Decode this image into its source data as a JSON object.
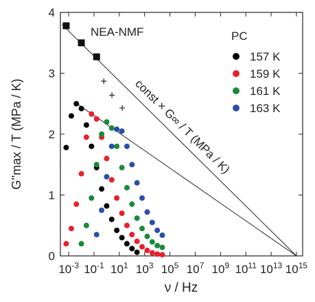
{
  "chart_data": {
    "type": "scatter",
    "xscale": "log",
    "xlabel": "ν / Hz",
    "ylabel": "G''max / T (MPa / K)",
    "xlim": [
      0.00022,
      3100000000000000.0
    ],
    "ylim": [
      0,
      4
    ],
    "xticks": [
      {
        "value": 0.001,
        "label": "10-3"
      },
      {
        "value": 0.1,
        "label": "10-1"
      },
      {
        "value": 10,
        "label": "101"
      },
      {
        "value": 1000,
        "label": "103"
      },
      {
        "value": 100000,
        "label": "105"
      },
      {
        "value": 10000000.0,
        "label": "107"
      },
      {
        "value": 1000000000.0,
        "label": "109"
      },
      {
        "value": 100000000000.0,
        "label": "1011"
      },
      {
        "value": 10000000000000.0,
        "label": "1013"
      },
      {
        "value": 1000000000000000.0,
        "label": "1015"
      }
    ],
    "yticks": [
      0,
      1,
      2,
      3,
      4
    ],
    "annotations": [
      "NEA-NMF",
      "const × G∞ / T (MPa / K)"
    ],
    "legend_title": "PC",
    "series": [
      {
        "name": "157 K",
        "color": "#000000",
        "x": [
          0.00063,
          0.0016,
          0.004,
          0.01,
          0.025,
          0.063,
          0.16,
          0.4,
          1,
          2.5,
          6.3,
          16,
          40,
          100,
          250
        ],
        "values": [
          1.78,
          2.3,
          2.5,
          2.42,
          2.15,
          1.8,
          1.45,
          1.1,
          0.82,
          0.6,
          0.42,
          0.3,
          0.2,
          0.12,
          0.06
        ]
      },
      {
        "name": "159 K",
        "color": "#e8202a",
        "x": [
          0.00063,
          0.0016,
          0.004,
          0.01,
          0.025,
          0.063,
          0.16,
          0.4,
          1,
          2.5,
          6.3,
          16,
          40,
          100,
          250,
          630,
          1600,
          4000,
          10000,
          25000
        ],
        "values": [
          0.2,
          0.45,
          0.85,
          1.35,
          1.95,
          2.33,
          2.25,
          1.95,
          1.6,
          1.25,
          0.95,
          0.7,
          0.5,
          0.35,
          0.24,
          0.15,
          0.09,
          0.05,
          0.03,
          0.02
        ]
      },
      {
        "name": "161 K",
        "color": "#1a8a3a",
        "x": [
          0.01,
          0.025,
          0.063,
          0.16,
          0.4,
          1,
          2.5,
          6.3,
          16,
          40,
          100,
          250,
          630,
          1600,
          4000,
          10000,
          25000
        ],
        "values": [
          0.2,
          0.5,
          0.95,
          1.5,
          2.0,
          2.2,
          2.1,
          1.8,
          1.45,
          1.12,
          0.85,
          0.62,
          0.45,
          0.32,
          0.23,
          0.17,
          0.14
        ]
      },
      {
        "name": "163 K",
        "color": "#2b4fa8",
        "x": [
          0.16,
          0.4,
          1,
          2.5,
          6.3,
          16,
          40,
          100,
          250,
          630,
          1600,
          4000,
          10000,
          25000
        ],
        "values": [
          0.35,
          0.75,
          1.3,
          1.8,
          2.08,
          2.05,
          1.8,
          1.5,
          1.2,
          0.95,
          0.72,
          0.55,
          0.42,
          0.34
        ]
      }
    ],
    "squares": {
      "x": [
        0.00063,
        0.01,
        0.16
      ],
      "values": [
        3.78,
        3.5,
        3.27
      ]
    },
    "crosses": {
      "x": [
        0.59,
        2.6,
        17
      ],
      "values": [
        2.87,
        2.64,
        2.43
      ]
    },
    "lines": [
      {
        "x": [
          0.0003,
          1000000000000000.0
        ],
        "values": [
          3.8,
          0
        ]
      },
      {
        "x": [
          0.0045,
          1000000000000000.0
        ],
        "values": [
          2.5,
          0
        ]
      }
    ]
  }
}
